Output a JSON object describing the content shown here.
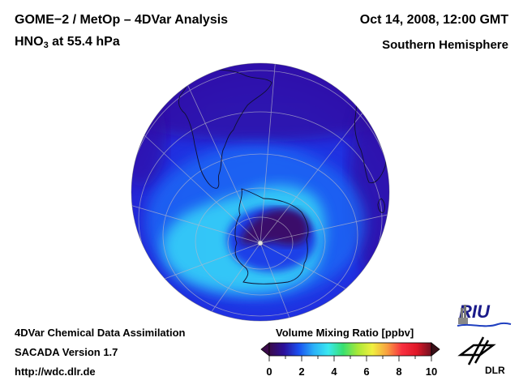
{
  "header": {
    "title": "GOME−2 / MetOp – 4DVar Analysis",
    "species": "HNO",
    "species_sub": "3",
    "level": " at 55.4 hPa",
    "datetime": "Oct 14, 2008, 12:00 GMT",
    "region": "Southern Hemisphere"
  },
  "footer": {
    "line1": "4DVar Chemical Data Assimilation",
    "line2": "SACADA Version 1.7",
    "line3": "http://wdc.dlr.de"
  },
  "colorbar": {
    "title": "Volume Mixing Ratio [ppbv]",
    "ticks": [
      "0",
      "2",
      "4",
      "6",
      "8",
      "10"
    ],
    "range": [
      0,
      10
    ],
    "colors": [
      "#3a0a4a",
      "#2b0f9a",
      "#1a50f0",
      "#2ab0f8",
      "#3ae8f0",
      "#38e070",
      "#a8e838",
      "#f0f040",
      "#f8a040",
      "#f83040",
      "#e01828",
      "#701020"
    ]
  },
  "logos": {
    "riu": "RIU",
    "dlr": "DLR"
  },
  "map": {
    "projection": "orthographic",
    "hemisphere": "south",
    "field_colors": {
      "low": "#2a0a8a",
      "mid": "#1a3ae8",
      "high": "#30d8f8",
      "vortex": "#3a0a6a"
    }
  }
}
